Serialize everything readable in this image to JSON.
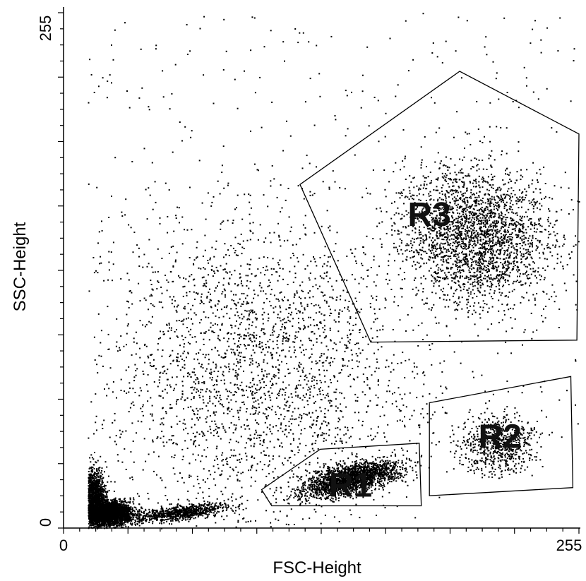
{
  "chart_data": {
    "type": "scatter",
    "xlabel": "FSC-Height",
    "ylabel": "SSC-Height",
    "xlim": [
      0,
      255
    ],
    "ylim": [
      0,
      255
    ],
    "x_tick_labels": [
      {
        "value": 0,
        "label": "0"
      },
      {
        "value": 255,
        "label": "255"
      }
    ],
    "y_tick_labels": [
      {
        "value": 0,
        "label": "0"
      },
      {
        "value": 255,
        "label": "255"
      }
    ],
    "regions": [
      {
        "name": "R1",
        "label_at": [
          142,
          20
        ],
        "polygon": [
          [
            98,
            19
          ],
          [
            127,
            39
          ],
          [
            176,
            42
          ],
          [
            177,
            11
          ],
          [
            103,
            11
          ]
        ]
      },
      {
        "name": "R2",
        "label_at": [
          216,
          44
        ],
        "polygon": [
          [
            181,
            62
          ],
          [
            251,
            75
          ],
          [
            252,
            20
          ],
          [
            181,
            16
          ]
        ]
      },
      {
        "name": "R3",
        "label_at": [
          181,
          154
        ],
        "polygon": [
          [
            117,
            170
          ],
          [
            196,
            226
          ],
          [
            255,
            195
          ],
          [
            254,
            93
          ],
          [
            152,
            92
          ]
        ]
      }
    ],
    "grid": false,
    "legend": "none"
  }
}
